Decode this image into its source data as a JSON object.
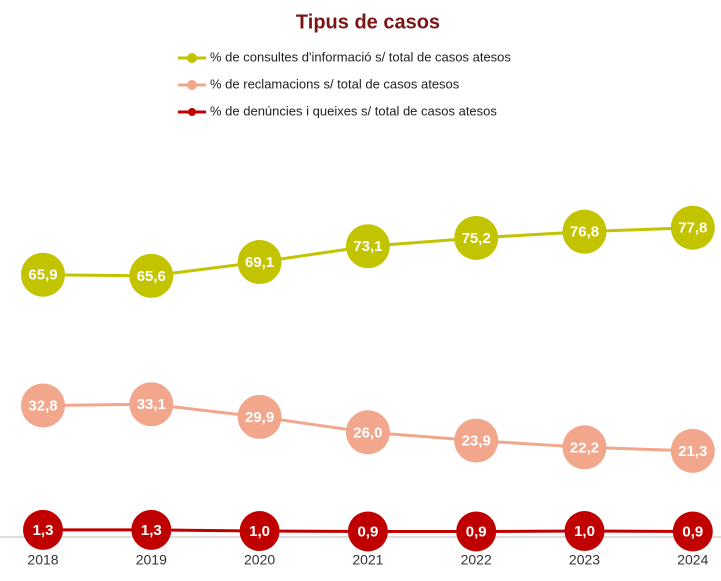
{
  "chart_data": {
    "type": "line",
    "title": "Tipus de casos",
    "categories": [
      "2018",
      "2019",
      "2020",
      "2021",
      "2022",
      "2023",
      "2024"
    ],
    "ylim": [
      0,
      80
    ],
    "series": [
      {
        "name": "% de consultes d'informació s/ total de casos atesos",
        "color": "#c3c400",
        "values": [
          65.9,
          65.6,
          69.1,
          73.1,
          75.2,
          76.8,
          77.8
        ],
        "value_labels": [
          "65,9",
          "65,6",
          "69,1",
          "73,1",
          "75,2",
          "76,8",
          "77,8"
        ]
      },
      {
        "name": "% de reclamacions s/ total de casos atesos",
        "color": "#f2a68c",
        "values": [
          32.8,
          33.1,
          29.9,
          26.0,
          23.9,
          22.2,
          21.3
        ],
        "value_labels": [
          "32,8",
          "33,1",
          "29,9",
          "26,0",
          "23,9",
          "22,2",
          "21,3"
        ]
      },
      {
        "name": "% de denúncies i queixes s/ total de casos atesos",
        "color": "#c00000",
        "values": [
          1.3,
          1.3,
          1.0,
          0.9,
          0.9,
          1.0,
          0.9
        ],
        "value_labels": [
          "1,3",
          "1,3",
          "1,0",
          "0,9",
          "0,9",
          "1,0",
          "0,9"
        ]
      }
    ]
  }
}
